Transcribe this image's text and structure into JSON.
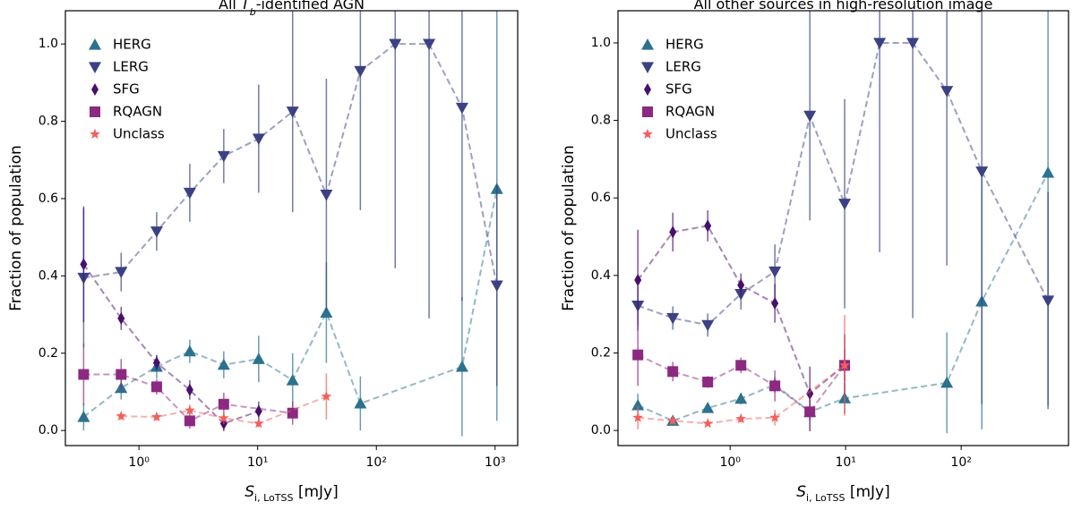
{
  "chart_data": [
    {
      "type": "line",
      "title_parts": [
        {
          "text": "All ",
          "style": "normal"
        },
        {
          "text": "T",
          "style": "italic"
        },
        {
          "text": "b",
          "style": "italic-sub"
        },
        {
          "text": "-identified AGN",
          "style": "normal"
        }
      ],
      "xlabel_parts": [
        {
          "text": "S",
          "style": "italic"
        },
        {
          "text": "i, LoTSS",
          "style": "sub"
        },
        {
          "text": " [mJy]",
          "style": "normal"
        }
      ],
      "ylabel": "Fraction of population",
      "log_x": true,
      "legend": "upper left",
      "xlim": [
        0.24,
        1550
      ],
      "ylim": [
        -0.039,
        1.086
      ],
      "xticks": [
        {
          "value": 1,
          "label": "10⁰"
        },
        {
          "value": 10,
          "label": "10¹"
        },
        {
          "value": 100,
          "label": "10²"
        },
        {
          "value": 1000,
          "label": "10³"
        }
      ],
      "yticks": [
        {
          "value": 0,
          "label": "0.0"
        },
        0.2,
        0.4,
        0.6,
        0.8,
        {
          "value": 1,
          "label": "1.0"
        }
      ],
      "series": [
        {
          "name": "HERG",
          "color": "#2c728e",
          "marker": "triangle-up",
          "x": [
            0.342,
            0.708,
            1.41,
            2.68,
            5.18,
            10.2,
            19.7,
            37.9,
            73.3,
            527,
            1035
          ],
          "values": [
            0.035,
            0.11,
            0.165,
            0.205,
            0.17,
            0.185,
            0.13,
            0.305,
            0.07,
            0.165,
            0.625
          ],
          "errors": [
            0.035,
            0.03,
            0.03,
            0.03,
            0.035,
            0.06,
            0.07,
            0.13,
            0.07,
            0.18,
            0.6
          ]
        },
        {
          "name": "LERG",
          "color": "#3b4183",
          "marker": "triangle-down",
          "x": [
            0.342,
            0.708,
            1.41,
            2.68,
            5.18,
            10.2,
            19.7,
            37.9,
            73.3,
            144,
            278,
            527,
            1035
          ],
          "values": [
            0.395,
            0.41,
            0.515,
            0.615,
            0.71,
            0.755,
            0.825,
            0.61,
            0.93,
            1.0,
            1.0,
            0.835,
            0.375
          ],
          "errors": [
            0.18,
            0.05,
            0.05,
            0.075,
            0.07,
            0.14,
            0.26,
            0.3,
            0.36,
            0.58,
            0.71,
            0.5,
            0.26
          ]
        },
        {
          "name": "SFG",
          "color": "#48106b",
          "marker": "thin-diamond",
          "x": [
            0.342,
            0.708,
            1.41,
            2.68,
            5.18,
            10.2
          ],
          "values": [
            0.43,
            0.29,
            0.175,
            0.105,
            0.018,
            0.05
          ],
          "errors": [
            0.15,
            0.03,
            0.02,
            0.025,
            0.02,
            0.025
          ]
        },
        {
          "name": "RQAGN",
          "color": "#8c2981",
          "marker": "square",
          "x": [
            0.342,
            0.708,
            1.41,
            2.68,
            5.18,
            19.7
          ],
          "values": [
            0.145,
            0.145,
            0.113,
            0.025,
            0.068,
            0.045
          ],
          "errors": [
            0.08,
            0.04,
            0.02,
            0.02,
            0.03,
            0.03
          ]
        },
        {
          "name": "Unclass",
          "color": "#f1605d",
          "marker": "star",
          "x": [
            0.708,
            1.41,
            2.68,
            5.18,
            10.2,
            37.9
          ],
          "values": [
            0.037,
            0.035,
            0.052,
            0.032,
            0.018,
            0.088
          ],
          "errors": [
            0.01,
            0.01,
            0.015,
            0.015,
            0.01,
            0.06
          ]
        }
      ]
    },
    {
      "type": "line",
      "title_parts": [
        {
          "text": "All other sources in high-resolution image",
          "style": "normal"
        }
      ],
      "xlabel_parts": [
        {
          "text": "S",
          "style": "italic"
        },
        {
          "text": "i, LoTSS",
          "style": "sub"
        },
        {
          "text": " [mJy]",
          "style": "normal"
        }
      ],
      "ylabel": "Fraction of population",
      "log_x": true,
      "legend": "upper left",
      "xlim": [
        0.107,
        850
      ],
      "ylim": [
        -0.039,
        1.083
      ],
      "xticks": [
        {
          "value": 1,
          "label": "10⁰"
        },
        {
          "value": 10,
          "label": "10¹"
        },
        {
          "value": 100,
          "label": "10²"
        }
      ],
      "yticks": [
        {
          "value": 0,
          "label": "0.0"
        },
        0.2,
        0.4,
        0.6,
        0.8,
        {
          "value": 1,
          "label": "1.0"
        }
      ],
      "series": [
        {
          "name": "HERG",
          "color": "#2c728e",
          "marker": "triangle-up",
          "x": [
            0.159,
            0.319,
            0.64,
            1.24,
            2.44,
            4.9,
            9.8,
            75.2,
            151,
            565
          ],
          "values": [
            0.065,
            0.025,
            0.058,
            0.082,
            0.118,
            0.048,
            0.083,
            0.123,
            0.333,
            0.665
          ],
          "errors": [
            0.03,
            0.01,
            0.01,
            0.015,
            0.02,
            0.05,
            0.04,
            0.13,
            0.33,
            0.6
          ]
        },
        {
          "name": "LERG",
          "color": "#3b4183",
          "marker": "triangle-down",
          "x": [
            0.159,
            0.319,
            0.64,
            1.24,
            2.44,
            4.9,
            9.8,
            19.7,
            38.1,
            75.2,
            151,
            565
          ],
          "values": [
            0.322,
            0.29,
            0.272,
            0.352,
            0.41,
            0.812,
            0.585,
            1.0,
            1.0,
            0.876,
            0.668,
            0.335
          ],
          "errors": [
            0.05,
            0.03,
            0.03,
            0.04,
            0.07,
            0.27,
            0.27,
            0.54,
            0.71,
            0.45,
            0.6,
            0.28
          ]
        },
        {
          "name": "SFG",
          "color": "#48106b",
          "marker": "thin-diamond",
          "x": [
            0.159,
            0.319,
            0.64,
            1.24,
            2.44,
            4.9,
            9.8
          ],
          "values": [
            0.388,
            0.512,
            0.528,
            0.375,
            0.328,
            0.095,
            0.168
          ],
          "errors": [
            0.13,
            0.05,
            0.04,
            0.03,
            0.05,
            0.07,
            0.08
          ]
        },
        {
          "name": "RQAGN",
          "color": "#8c2981",
          "marker": "square",
          "x": [
            0.159,
            0.319,
            0.64,
            1.24,
            2.44,
            4.9,
            9.8
          ],
          "values": [
            0.195,
            0.152,
            0.125,
            0.168,
            0.115,
            0.048,
            0.168
          ],
          "errors": [
            0.08,
            0.025,
            0.015,
            0.02,
            0.04,
            0.05,
            0.04
          ]
        },
        {
          "name": "Unclass",
          "color": "#f1605d",
          "marker": "star",
          "x": [
            0.159,
            0.319,
            0.64,
            1.24,
            2.44,
            9.8
          ],
          "values": [
            0.033,
            0.025,
            0.018,
            0.03,
            0.033,
            0.168
          ],
          "errors": [
            0.03,
            0.01,
            0.005,
            0.01,
            0.02,
            0.13
          ]
        }
      ]
    }
  ]
}
